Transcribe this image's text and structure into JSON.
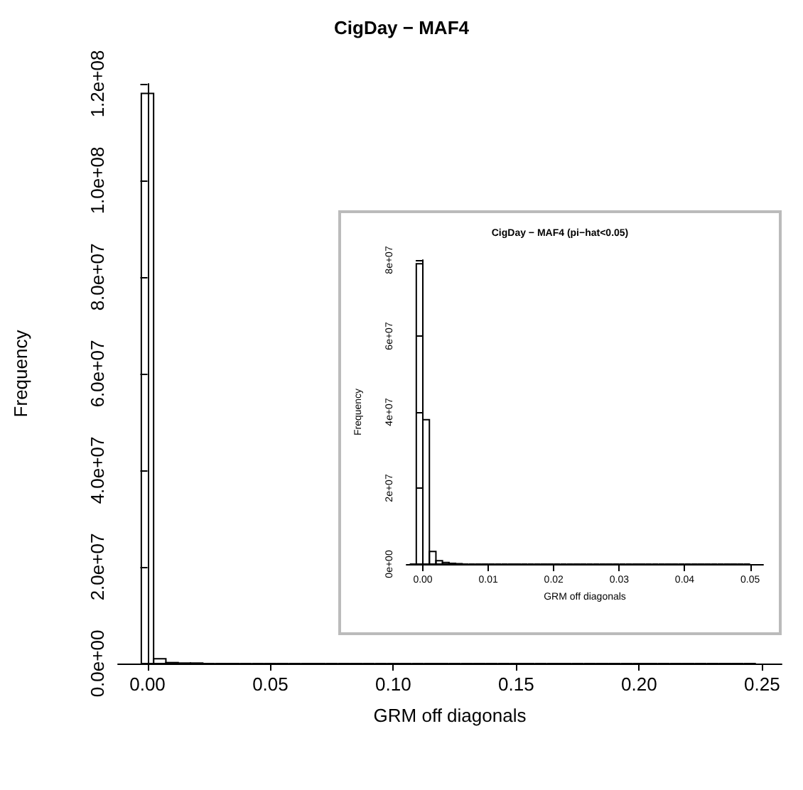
{
  "chart_data": [
    {
      "type": "histogram",
      "title": "CigDay − MAF4",
      "xlabel": "GRM off diagonals",
      "ylabel": "Frequency",
      "bins": [
        -0.0025,
        0.0025,
        0.0075,
        0.0125,
        0.0175,
        0.0225,
        0.0275,
        0.0325,
        0.0375,
        0.0425,
        0.0475,
        0.0525,
        0.0575,
        0.0625,
        0.0675,
        0.0725,
        0.0775,
        0.0825,
        0.0875,
        0.0925,
        0.0975,
        0.1025,
        0.1075,
        0.1125,
        0.1175,
        0.1225,
        0.1275,
        0.1325,
        0.1375,
        0.1425,
        0.1475,
        0.1525,
        0.1575,
        0.1625,
        0.1675,
        0.1725,
        0.1775,
        0.1825,
        0.1875,
        0.1925,
        0.1975,
        0.2025,
        0.2075,
        0.2125,
        0.2175,
        0.2225,
        0.2275,
        0.2325,
        0.2375,
        0.2425,
        0.2475
      ],
      "values": [
        118000000,
        1000000,
        200000,
        100000,
        100000,
        0,
        0,
        0,
        0,
        0,
        0,
        0,
        0,
        0,
        0,
        0,
        0,
        0,
        0,
        0,
        0,
        0,
        0,
        0,
        0,
        0,
        0,
        0,
        0,
        0,
        0,
        0,
        0,
        0,
        0,
        0,
        0,
        0,
        0,
        0,
        0,
        0,
        0,
        0,
        0,
        0,
        0,
        0,
        0,
        0
      ],
      "color": "#000000",
      "xlim": [
        -0.012,
        0.258
      ],
      "xticks": [
        {
          "value": 0,
          "label": "0.00"
        },
        0.05,
        {
          "value": 0.1,
          "label": "0.10"
        },
        0.15,
        {
          "value": 0.2,
          "label": "0.20"
        },
        0.25
      ],
      "ylim": [
        0,
        120000000
      ],
      "yticks": [
        {
          "value": 0,
          "label": "0.0e+00"
        },
        {
          "value": 20000000,
          "label": "2.0e+07"
        },
        {
          "value": 40000000,
          "label": "4.0e+07"
        },
        {
          "value": 60000000,
          "label": "6.0e+07"
        },
        {
          "value": 80000000,
          "label": "8.0e+07"
        },
        {
          "value": 100000000,
          "label": "1.0e+08"
        },
        {
          "value": 120000000,
          "label": "1.2e+08"
        }
      ]
    },
    {
      "type": "histogram",
      "title": "CigDay − MAF4 (pi−hat<0.05)",
      "xlabel": "GRM off diagonals",
      "ylabel": "Frequency",
      "bins": [
        -0.002,
        -0.001,
        0,
        0.001,
        0.002,
        0.003,
        0.004,
        0.005,
        0.006,
        0.007,
        0.008,
        0.009,
        0.01,
        0.011,
        0.012,
        0.013,
        0.014,
        0.015,
        0.016,
        0.017,
        0.018,
        0.019,
        0.02,
        0.021,
        0.022,
        0.023,
        0.024,
        0.025,
        0.026,
        0.027,
        0.028,
        0.029,
        0.03,
        0.031,
        0.032,
        0.033,
        0.034,
        0.035,
        0.036,
        0.037,
        0.038,
        0.039,
        0.04,
        0.041,
        0.042,
        0.043,
        0.044,
        0.045,
        0.046,
        0.047,
        0.048,
        0.049,
        0.05
      ],
      "values": [
        0,
        79000000,
        38000000,
        3300000,
        900000,
        400000,
        200000,
        100000,
        0,
        0,
        0,
        0,
        0,
        0,
        0,
        0,
        0,
        0,
        0,
        0,
        0,
        0,
        0,
        0,
        0,
        0,
        0,
        0,
        0,
        0,
        0,
        0,
        0,
        0,
        0,
        0,
        0,
        0,
        0,
        0,
        0,
        0,
        0,
        0,
        0,
        0,
        0,
        0,
        0,
        0,
        0,
        0
      ],
      "color": "#000000",
      "xlim": [
        -0.0025,
        0.052
      ],
      "xticks": [
        {
          "value": 0,
          "label": "0.00"
        },
        {
          "value": 0.01,
          "label": "0.01"
        },
        {
          "value": 0.02,
          "label": "0.02"
        },
        {
          "value": 0.03,
          "label": "0.03"
        },
        {
          "value": 0.04,
          "label": "0.04"
        },
        {
          "value": 0.05,
          "label": "0.05"
        }
      ],
      "ylim": [
        0,
        80000000
      ],
      "yticks": [
        {
          "value": 0,
          "label": "0e+00"
        },
        {
          "value": 20000000,
          "label": "2e+07"
        },
        {
          "value": 40000000,
          "label": "4e+07"
        },
        {
          "value": 60000000,
          "label": "6e+07"
        },
        {
          "value": 80000000,
          "label": "8e+07"
        }
      ]
    }
  ]
}
